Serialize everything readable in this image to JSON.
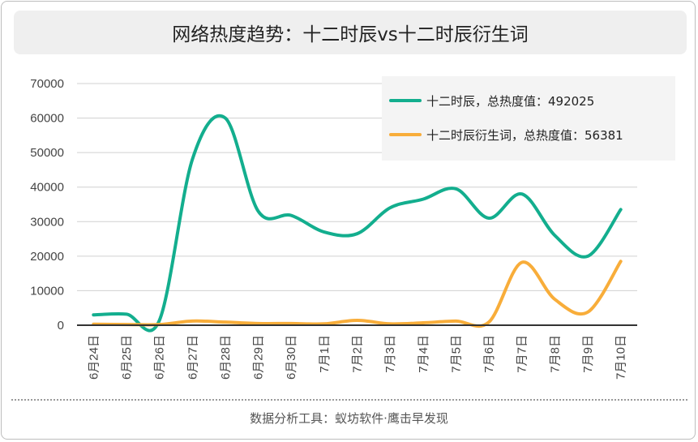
{
  "title": "网络热度趋势：十二时辰vs十二时辰衍生词",
  "footer": "数据分析工具：蚁坊软件·鹰击早发现",
  "chart_data": {
    "type": "line",
    "categories": [
      "6月24日",
      "6月25日",
      "6月26日",
      "6月27日",
      "6月28日",
      "6月29日",
      "6月30日",
      "7月1日",
      "7月2日",
      "7月3日",
      "7月4日",
      "7月5日",
      "7月6日",
      "7月7日",
      "7月8日",
      "7月9日",
      "7月10日"
    ],
    "ylim": [
      0,
      70000
    ],
    "yticks": [
      0,
      10000,
      20000,
      30000,
      40000,
      50000,
      60000,
      70000
    ],
    "grid": true,
    "legend_position": "top-right",
    "series": [
      {
        "name": "十二时辰",
        "legend_label": "十二时辰，总热度值：492025",
        "color": "#13ae8e",
        "values": [
          3000,
          3200,
          1400,
          48000,
          60000,
          33000,
          31800,
          27000,
          26500,
          34000,
          36500,
          39500,
          31000,
          38000,
          26000,
          20000,
          33500
        ]
      },
      {
        "name": "十二时辰衍生词",
        "legend_label": "十二时辰衍生词，总热度值：56381",
        "color": "#f8ad3a",
        "values": [
          300,
          200,
          200,
          1200,
          900,
          500,
          500,
          400,
          1400,
          400,
          700,
          1200,
          900,
          18200,
          7500,
          3800,
          18500
        ]
      }
    ]
  }
}
